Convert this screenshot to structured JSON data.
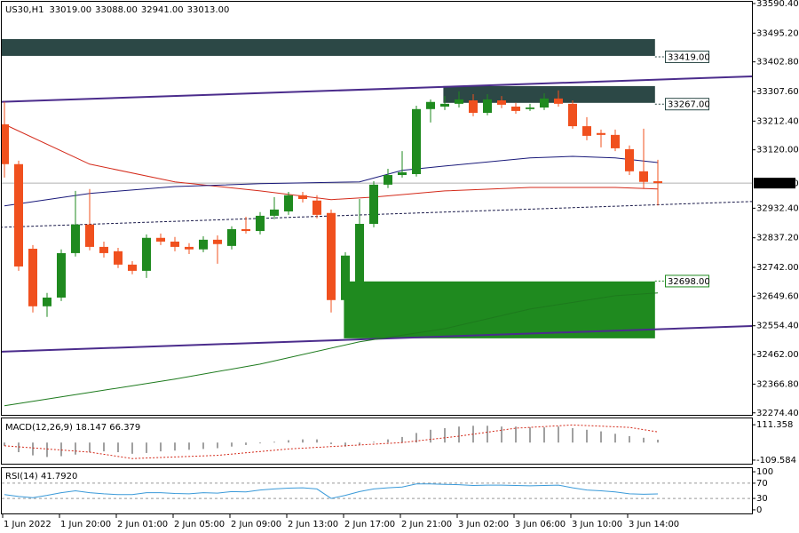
{
  "chart_data": [
    {
      "type": "candlestick",
      "symbol": "US30,H1",
      "ohlc_labels": [
        "33019.00",
        "33088.00",
        "32941.00",
        "33013.00"
      ],
      "categories": [
        "1 Jun 2022",
        null,
        null,
        null,
        "1 Jun 20:00",
        null,
        null,
        null,
        "2 Jun 01:00",
        null,
        null,
        null,
        "2 Jun 05:00",
        null,
        null,
        null,
        "2 Jun 09:00",
        null,
        null,
        null,
        "2 Jun 13:00",
        null,
        null,
        null,
        "2 Jun 17:00",
        null,
        null,
        null,
        "2 Jun 21:00",
        null,
        null,
        null,
        "3 Jun 02:00",
        null,
        null,
        null,
        "3 Jun 06:00",
        null,
        null,
        null,
        "3 Jun 10:00",
        null,
        null,
        null,
        "3 Jun 14:00",
        null,
        null
      ],
      "open": [
        33202,
        33074,
        32802,
        32617,
        32645,
        32788,
        32880,
        32808,
        32794,
        32751,
        32731,
        32837,
        32825,
        32808,
        32800,
        32831,
        32811,
        32865,
        32859,
        32908,
        32922,
        32974,
        32957,
        32917,
        32637,
        32688,
        32882,
        33008,
        33039,
        33042,
        33251,
        33259,
        33268,
        33279,
        33239,
        33279,
        33259,
        33251,
        33256,
        33285,
        33268,
        33196,
        33174,
        33168,
        33122,
        33051,
        33019
      ],
      "high": [
        33274,
        33085,
        32814,
        32660,
        32800,
        32988,
        32994,
        32825,
        32805,
        32762,
        32848,
        32851,
        32840,
        32820,
        32842,
        32845,
        32874,
        32905,
        32920,
        32968,
        32985,
        32985,
        32974,
        32928,
        32791,
        32962,
        33019,
        33059,
        33116,
        33262,
        33282,
        33293,
        33308,
        33299,
        33299,
        33293,
        33271,
        33268,
        33302,
        33311,
        33279,
        33225,
        33185,
        33185,
        33134,
        33188,
        33088
      ],
      "low": [
        33031,
        32731,
        32597,
        32583,
        32634,
        32777,
        32797,
        32774,
        32740,
        32720,
        32708,
        32814,
        32794,
        32785,
        32791,
        32754,
        32800,
        32851,
        32848,
        32897,
        32911,
        32951,
        32900,
        32597,
        32625,
        32677,
        32871,
        32997,
        33031,
        33034,
        33208,
        33248,
        33256,
        33228,
        33231,
        33254,
        33236,
        33245,
        33248,
        33259,
        33188,
        33151,
        33128,
        33116,
        33039,
        32994,
        32941
      ],
      "close": [
        33074,
        32745,
        32617,
        32645,
        32788,
        32880,
        32808,
        32788,
        32751,
        32731,
        32837,
        32825,
        32808,
        32800,
        32831,
        32817,
        32865,
        32859,
        32908,
        32928,
        32974,
        32962,
        32911,
        32637,
        32780,
        32882,
        33008,
        33039,
        33048,
        33251,
        33274,
        33268,
        33282,
        33239,
        33282,
        33265,
        33245,
        33256,
        33285,
        33268,
        33196,
        33165,
        33168,
        33125,
        33051,
        33017,
        33013
      ],
      "up_color": "#1f8a1f",
      "down_color": "#f0501e",
      "ylim": [
        32268,
        33596
      ],
      "yticks": [
        {
          "value": 33590.4,
          "label": "33590.40"
        },
        {
          "value": 33495.2,
          "label": "33495.20"
        },
        {
          "value": 33402.8,
          "label": "33402.80"
        },
        {
          "value": 33307.6,
          "label": "33307.60"
        },
        {
          "value": 33212.4,
          "label": "33212.40"
        },
        {
          "value": 33120,
          "label": "33120.00"
        },
        {
          "value": 32932.4,
          "label": "32932.40"
        },
        {
          "value": 32837.2,
          "label": "32837.20"
        },
        {
          "value": 32742,
          "label": "32742.00"
        },
        {
          "value": 32649.6,
          "label": "32649.60"
        },
        {
          "value": 32554.4,
          "label": "32554.40"
        },
        {
          "value": 32462,
          "label": "32462.00"
        },
        {
          "value": 32366.8,
          "label": "32366.80"
        },
        {
          "value": 32274.4,
          "label": "32274.40"
        }
      ],
      "last_price": {
        "value": 33013,
        "label": "33013.00"
      },
      "zones": [
        {
          "top": 33476,
          "bottom": 33422,
          "start": -0.4,
          "end": 45.8,
          "color": "#2c4846",
          "level": {
            "value": 33419,
            "label": "33419.00"
          }
        },
        {
          "top": 33325,
          "bottom": 33271,
          "start": 30.9,
          "end": 45.8,
          "color": "#2c4846",
          "level": {
            "value": 33267,
            "label": "33267.00"
          }
        },
        {
          "top": 32697,
          "bottom": 32514,
          "start": 23.9,
          "end": 45.8,
          "color": "#1f8a1f",
          "level": {
            "value": 32698,
            "label": "32698.00"
          }
        }
      ],
      "overlays": [
        {
          "color": "#d42a1a",
          "x": [
            0,
            6,
            12,
            18,
            23,
            26,
            31,
            37,
            43,
            46
          ],
          "values": [
            33202,
            33074,
            33017,
            32988,
            32960,
            32968,
            32988,
            32999,
            32999,
            32994
          ]
        },
        {
          "color": "#1a1a7a",
          "x": [
            0,
            6,
            12,
            18,
            25,
            28,
            31,
            37,
            40,
            43,
            46
          ],
          "values": [
            32940,
            32980,
            33002,
            33011,
            33017,
            33054,
            33068,
            33094,
            33099,
            33094,
            33079
          ]
        },
        {
          "color": "#1d7a1d",
          "x": [
            0,
            6,
            12,
            18,
            25,
            31,
            37,
            43,
            46
          ],
          "values": [
            32297,
            32340,
            32383,
            32431,
            32503,
            32545,
            32608,
            32651,
            32660
          ]
        }
      ],
      "trendlines": [
        {
          "color": "#4b2c8c",
          "dashed": false,
          "x": [
            -0.3,
            52.7
          ],
          "values": [
            33274,
            33356
          ]
        },
        {
          "color": "#4b2c8c",
          "dashed": false,
          "x": [
            -0.3,
            52.7
          ],
          "values": [
            32471,
            32554
          ]
        },
        {
          "color": "#1a1a4a",
          "dashed": true,
          "x": [
            -0.3,
            52.7
          ],
          "values": [
            32871,
            32954
          ]
        }
      ]
    },
    {
      "type": "macd",
      "title": "MACD(12,26,9) 18.147 66.379",
      "values": [
        -20,
        -60,
        -80,
        -90,
        -85,
        -75,
        -60,
        -55,
        -60,
        -70,
        -65,
        -55,
        -50,
        -45,
        -40,
        -35,
        -25,
        -15,
        -5,
        5,
        15,
        20,
        20,
        -10,
        -25,
        -15,
        5,
        20,
        35,
        60,
        80,
        90,
        100,
        105,
        105,
        100,
        100,
        95,
        95,
        100,
        90,
        80,
        70,
        55,
        40,
        30,
        18.147
      ],
      "color": "#a0a0a0",
      "signal": {
        "color": "#d42a1a",
        "x": [
          0,
          6,
          9,
          15,
          20,
          25,
          28,
          32,
          36,
          40,
          44,
          46
        ],
        "values": [
          -20,
          -60,
          -100,
          -80,
          -40,
          -15,
          0,
          40,
          90,
          110,
          95,
          66.379
        ]
      },
      "ylim": [
        -132,
        151
      ],
      "yticks": [
        111.358,
        -109.584
      ]
    },
    {
      "type": "line",
      "title": "RSI(14) 41.7920",
      "values": [
        40,
        35,
        32,
        38,
        45,
        50,
        45,
        42,
        40,
        40,
        45,
        45,
        43,
        42,
        45,
        44,
        48,
        47,
        52,
        55,
        57,
        58,
        55,
        30,
        38,
        48,
        55,
        58,
        60,
        68,
        68,
        67,
        66,
        64,
        65,
        65,
        64,
        63,
        64,
        65,
        58,
        52,
        50,
        47,
        42,
        41,
        41.792
      ],
      "color": "#3a9ad9",
      "levels": [
        70,
        30
      ],
      "ylim": [
        -9.5,
        109.5
      ],
      "yticks": [
        100,
        70,
        30,
        0
      ]
    }
  ]
}
